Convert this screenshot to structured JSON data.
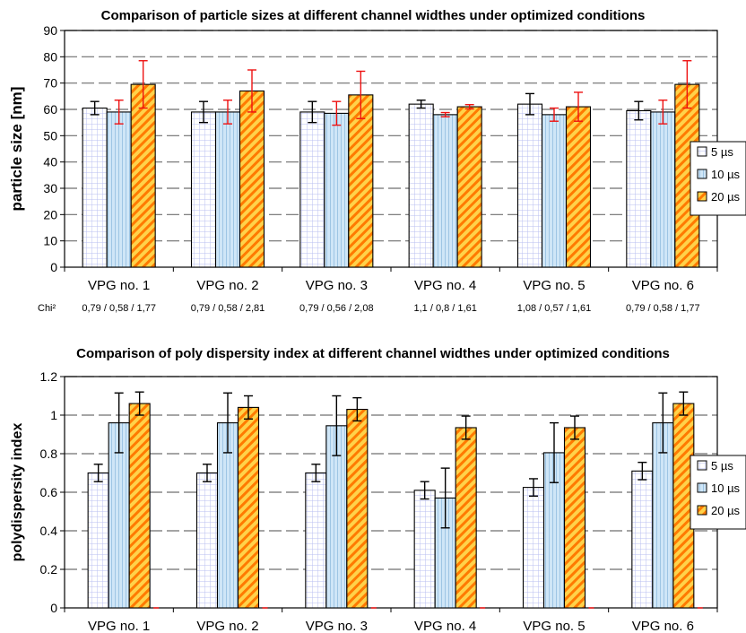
{
  "chart_data": [
    {
      "type": "bar",
      "title": "Comparison of particle sizes at different channel widthes under optimized conditions",
      "ylabel": "particle size [nm]",
      "xlabel": "",
      "ylim": [
        0,
        90
      ],
      "yticks": [
        "0",
        "10",
        "20",
        "30",
        "40",
        "50",
        "60",
        "70",
        "80",
        "90"
      ],
      "grid": "horizontal dashed",
      "legend_position": "right",
      "categories": [
        "VPG no. 1",
        "VPG no. 2",
        "VPG no. 3",
        "VPG no. 4",
        "VPG no. 5",
        "VPG no. 6"
      ],
      "series": [
        {
          "name": "5 µs",
          "values": [
            60.5,
            59,
            59,
            62,
            62,
            59.5
          ],
          "errors": [
            2.5,
            4,
            4,
            1.5,
            4,
            3.5
          ],
          "error_color": "#000000"
        },
        {
          "name": "10 µs",
          "values": [
            59,
            59,
            58.5,
            58,
            58,
            59
          ],
          "errors": [
            4.5,
            4.5,
            4.5,
            0.8,
            2.5,
            4.5
          ],
          "error_color": "#ee1111"
        },
        {
          "name": "20 µs",
          "values": [
            69.5,
            67,
            65.5,
            61,
            61,
            69.5
          ],
          "errors": [
            9,
            8,
            9,
            0.8,
            5.5,
            9
          ],
          "error_color": "#ee1111"
        }
      ],
      "chi_label": "Chi²",
      "chi_values": [
        "0,79 / 0,58 / 1,77",
        "0,79 / 0,58 / 2,81",
        "0,79 / 0,56 / 2,08",
        "1,1 / 0,8 / 1,61",
        "1,08 / 0,57 / 1,61",
        "0,79 / 0,58 / 1,77"
      ]
    },
    {
      "type": "bar",
      "title": "Comparison of poly dispersity index at different channel widthes under optimized conditions",
      "ylabel": "polydispersity index",
      "xlabel": "",
      "ylim": [
        0,
        1.2
      ],
      "yticks": [
        "0",
        "0.2",
        "0.4",
        "0.6",
        "0.8",
        "1",
        "1.2"
      ],
      "grid": "horizontal dashed",
      "legend_position": "right",
      "categories": [
        "VPG no. 1",
        "VPG no. 2",
        "VPG no.  3",
        "VPG no. 4",
        "VPG no. 5",
        "VPG no. 6"
      ],
      "series": [
        {
          "name": "5 µs",
          "values": [
            0.7,
            0.7,
            0.7,
            0.61,
            0.625,
            0.71
          ],
          "errors": [
            0.045,
            0.045,
            0.045,
            0.045,
            0.045,
            0.045
          ],
          "error_color": "#000000"
        },
        {
          "name": "10 µs",
          "values": [
            0.96,
            0.96,
            0.945,
            0.57,
            0.805,
            0.96
          ],
          "errors": [
            0.155,
            0.155,
            0.155,
            0.155,
            0.155,
            0.155
          ],
          "error_color": "#000000"
        },
        {
          "name": "20 µs",
          "values": [
            1.06,
            1.04,
            1.03,
            0.935,
            0.935,
            1.06
          ],
          "errors": [
            0.06,
            0.06,
            0.06,
            0.06,
            0.06,
            0.06
          ],
          "error_color": "#000000"
        }
      ]
    }
  ],
  "colors": {
    "s5_fill": "#ffffff",
    "s5_pattern": "#b9bff0",
    "s10_fill": "#cfe6f7",
    "s10_pattern": "#6ea4d0",
    "s20_fill": "#ffd24a",
    "s20_pattern": "#ff7a00",
    "grid": "#6f6f6f",
    "axis": "#000000"
  }
}
